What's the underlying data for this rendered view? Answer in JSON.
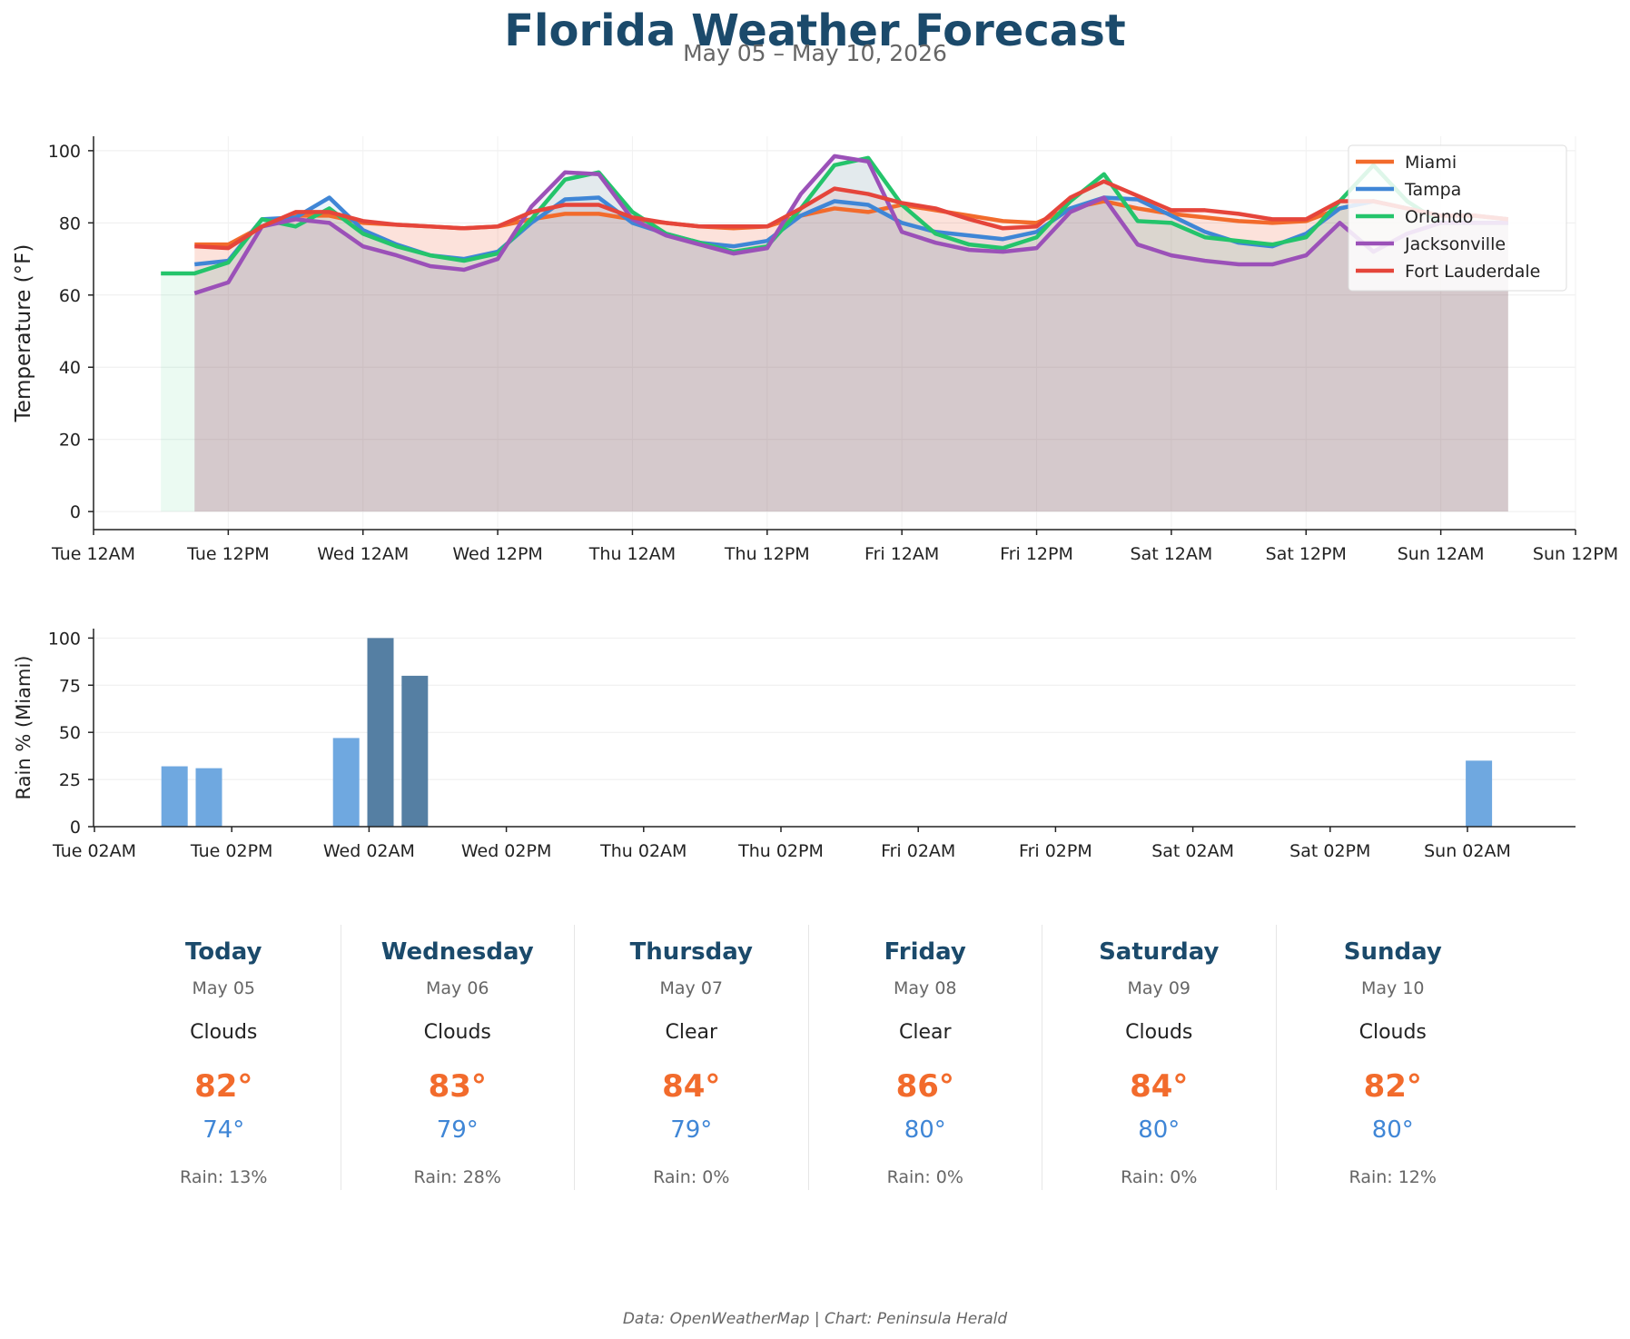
{
  "header": {
    "title": "Florida Weather Forecast",
    "subtitle": "May 05 – May 10, 2026"
  },
  "footer": "Data: OpenWeatherMap | Chart: Peninsula Herald",
  "chart_data": [
    {
      "type": "line",
      "ylabel": "Temperature (°F)",
      "ylim": [
        -5,
        104
      ],
      "yticks": [
        0,
        20,
        40,
        60,
        80,
        100
      ],
      "x_unit": "hours since Tue 12AM",
      "xlim": [
        0,
        132
      ],
      "xticks": [
        {
          "h": 0,
          "label": "Tue 12AM"
        },
        {
          "h": 12,
          "label": "Tue 12PM"
        },
        {
          "h": 24,
          "label": "Wed 12AM"
        },
        {
          "h": 36,
          "label": "Wed 12PM"
        },
        {
          "h": 48,
          "label": "Thu 12AM"
        },
        {
          "h": 60,
          "label": "Thu 12PM"
        },
        {
          "h": 72,
          "label": "Fri 12AM"
        },
        {
          "h": 84,
          "label": "Fri 12PM"
        },
        {
          "h": 96,
          "label": "Sat 12AM"
        },
        {
          "h": 108,
          "label": "Sat 12PM"
        },
        {
          "h": 120,
          "label": "Sun 12AM"
        },
        {
          "h": 132,
          "label": "Sun 12PM"
        }
      ],
      "grid": true,
      "legend_position": "top-right",
      "series": [
        {
          "name": "Miami",
          "color": "#f26b2c",
          "x": [
            9,
            12,
            15,
            18,
            21,
            24,
            27,
            30,
            33,
            36,
            39,
            42,
            45,
            48,
            51,
            54,
            57,
            60,
            63,
            66,
            69,
            72,
            75,
            78,
            81,
            84,
            87,
            90,
            93,
            96,
            99,
            102,
            105,
            108,
            111,
            114,
            117,
            120,
            123,
            126
          ],
          "y": [
            74,
            74,
            79,
            82,
            82,
            80,
            79.5,
            79,
            78.5,
            79,
            81,
            82.5,
            82.5,
            81,
            80,
            79,
            78.5,
            79,
            82,
            84,
            83,
            85,
            83.5,
            82,
            80.5,
            80,
            84,
            86,
            84,
            82.5,
            81.5,
            80.5,
            80,
            80.5,
            84,
            86,
            84,
            82,
            82,
            81
          ]
        },
        {
          "name": "Tampa",
          "color": "#3f86d6",
          "x": [
            9,
            12,
            15,
            18,
            21,
            24,
            27,
            30,
            33,
            36,
            39,
            42,
            45,
            48,
            51,
            54,
            57,
            60,
            63,
            66,
            69,
            72,
            75,
            78,
            81,
            84,
            87,
            90,
            93,
            96,
            99,
            102,
            105,
            108,
            111,
            114,
            117,
            120,
            123,
            126
          ],
          "y": [
            68.5,
            69.5,
            81,
            81.5,
            87,
            78,
            74,
            71,
            70,
            72,
            80,
            86.5,
            87,
            80,
            77,
            74.5,
            73.5,
            75,
            82,
            86,
            85,
            80,
            77.5,
            76.5,
            75.5,
            77.5,
            84,
            87,
            86.5,
            82,
            77.5,
            74.5,
            73.5,
            77,
            84,
            86,
            84,
            82,
            82,
            81
          ]
        },
        {
          "name": "Orlando",
          "color": "#24c46b",
          "x": [
            6,
            9,
            12,
            15,
            18,
            21,
            24,
            27,
            30,
            33,
            36,
            39,
            42,
            45,
            48,
            51,
            54,
            57,
            60,
            63,
            66,
            69,
            72,
            75,
            78,
            81,
            84,
            87,
            90,
            93,
            96,
            99,
            102,
            105,
            108,
            111,
            114,
            117,
            120,
            123,
            126
          ],
          "y": [
            66,
            66,
            69,
            81,
            79,
            84,
            77,
            73.5,
            71,
            69.5,
            71.5,
            81,
            92,
            94,
            83,
            77,
            74.5,
            72,
            73.5,
            84,
            96,
            98,
            85,
            77,
            74,
            73,
            76,
            86,
            93.5,
            80.5,
            80,
            76,
            75,
            74,
            76,
            86,
            96,
            86,
            80,
            80,
            80
          ]
        },
        {
          "name": "Jacksonville",
          "color": "#9b51b8",
          "x": [
            9,
            12,
            15,
            18,
            21,
            24,
            27,
            30,
            33,
            36,
            39,
            42,
            45,
            48,
            51,
            54,
            57,
            60,
            63,
            66,
            69,
            72,
            75,
            78,
            81,
            84,
            87,
            90,
            93,
            96,
            99,
            102,
            105,
            108,
            111,
            114,
            117,
            120,
            123,
            126
          ],
          "y": [
            60.5,
            63.5,
            79,
            81,
            80,
            73.5,
            71,
            68,
            67,
            70,
            84.5,
            94,
            93.5,
            81,
            76.5,
            74,
            71.5,
            73,
            88,
            98.5,
            97,
            77.5,
            74.5,
            72.5,
            72,
            73,
            83,
            87,
            74,
            71,
            69.5,
            68.5,
            68.5,
            71,
            80,
            72,
            77,
            80,
            80,
            80
          ]
        },
        {
          "name": "Fort Lauderdale",
          "color": "#e5453b",
          "x": [
            9,
            12,
            15,
            18,
            21,
            24,
            27,
            30,
            33,
            36,
            39,
            42,
            45,
            48,
            51,
            54,
            57,
            60,
            63,
            66,
            69,
            72,
            75,
            78,
            81,
            84,
            87,
            90,
            93,
            96,
            99,
            102,
            105,
            108,
            111,
            114,
            117,
            120,
            123,
            126
          ],
          "y": [
            73.5,
            73,
            79,
            83,
            83,
            80.5,
            79.5,
            79,
            78.5,
            79,
            83,
            85,
            85,
            81.5,
            80,
            79,
            79,
            79,
            84,
            89.5,
            88,
            85.5,
            84,
            81,
            78.5,
            79,
            87,
            91.5,
            87.5,
            83.5,
            83.5,
            82.5,
            81,
            81,
            86,
            86,
            84,
            82,
            82,
            81
          ]
        }
      ]
    },
    {
      "type": "bar",
      "ylabel": "Rain % (Miami)",
      "ylim": [
        0,
        105
      ],
      "yticks": [
        0,
        25,
        50,
        75,
        100
      ],
      "x_unit": "hours since Tue 02AM",
      "xticks": [
        {
          "h": 0,
          "label": "Tue 02AM"
        },
        {
          "h": 12,
          "label": "Tue 02PM"
        },
        {
          "h": 24,
          "label": "Wed 02AM"
        },
        {
          "h": 36,
          "label": "Wed 02PM"
        },
        {
          "h": 48,
          "label": "Thu 02AM"
        },
        {
          "h": 60,
          "label": "Thu 02PM"
        },
        {
          "h": 72,
          "label": "Fri 02AM"
        },
        {
          "h": 84,
          "label": "Fri 02PM"
        },
        {
          "h": 96,
          "label": "Sat 02AM"
        },
        {
          "h": 108,
          "label": "Sat 02PM"
        },
        {
          "h": 120,
          "label": "Sun 02AM"
        }
      ],
      "bars": [
        {
          "h": 7,
          "value": 32,
          "color": "#6fa8e0"
        },
        {
          "h": 10,
          "value": 31,
          "color": "#6fa8e0"
        },
        {
          "h": 22,
          "value": 47,
          "color": "#6fa8e0"
        },
        {
          "h": 25,
          "value": 100,
          "color": "#557fa3"
        },
        {
          "h": 28,
          "value": 80,
          "color": "#557fa3"
        },
        {
          "h": 121,
          "value": 35,
          "color": "#6fa8e0"
        }
      ]
    }
  ],
  "forecast": [
    {
      "day": "Today",
      "date": "May 05",
      "condition": "Clouds",
      "high": "82°",
      "low": "74°",
      "rain": "Rain: 13%"
    },
    {
      "day": "Wednesday",
      "date": "May 06",
      "condition": "Clouds",
      "high": "83°",
      "low": "79°",
      "rain": "Rain: 28%"
    },
    {
      "day": "Thursday",
      "date": "May 07",
      "condition": "Clear",
      "high": "84°",
      "low": "79°",
      "rain": "Rain: 0%"
    },
    {
      "day": "Friday",
      "date": "May 08",
      "condition": "Clear",
      "high": "86°",
      "low": "80°",
      "rain": "Rain: 0%"
    },
    {
      "day": "Saturday",
      "date": "May 09",
      "condition": "Clouds",
      "high": "84°",
      "low": "80°",
      "rain": "Rain: 0%"
    },
    {
      "day": "Sunday",
      "date": "May 10",
      "condition": "Clouds",
      "high": "82°",
      "low": "80°",
      "rain": "Rain: 12%"
    }
  ]
}
